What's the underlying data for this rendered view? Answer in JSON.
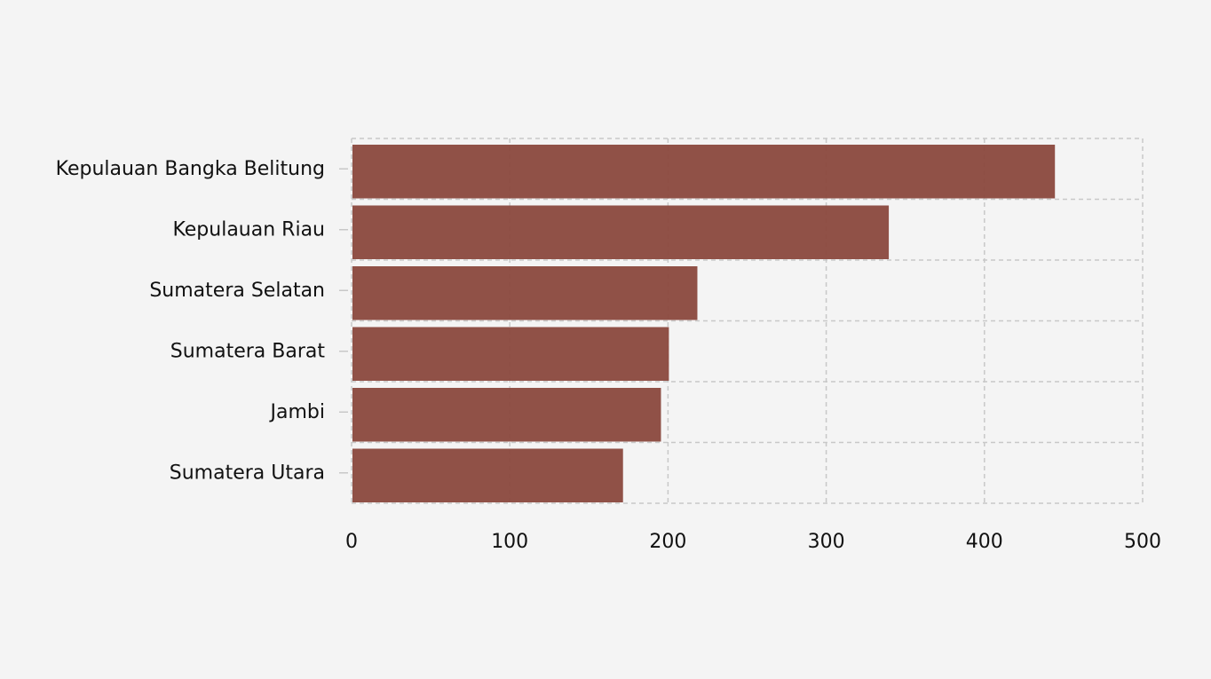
{
  "chart_data": {
    "type": "bar",
    "orientation": "horizontal",
    "categories": [
      "Kepulauan Bangka Belitung",
      "Kepulauan Riau",
      "Sumatera Selatan",
      "Sumatera Barat",
      "Jambi",
      "Sumatera Utara"
    ],
    "values": [
      444,
      339,
      218,
      200,
      195,
      171
    ],
    "title": "",
    "xlabel": "",
    "ylabel": "",
    "xlim": [
      0,
      500
    ],
    "x_ticks": [
      "0",
      "100",
      "200",
      "300",
      "400",
      "500"
    ],
    "grid": true,
    "legend": "none",
    "bar_color": "#8b4a3f",
    "background_color": "#f4f4f4",
    "grid_color": "#c8c8c8"
  }
}
